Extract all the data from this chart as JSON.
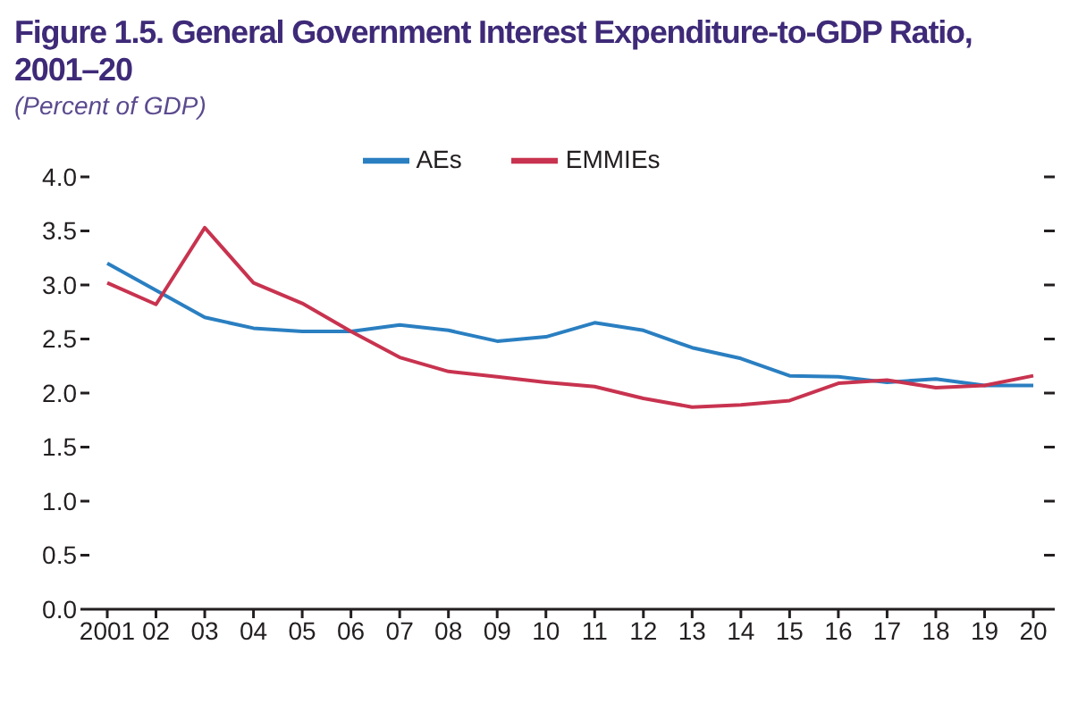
{
  "chart_data": {
    "type": "line",
    "title": "Figure 1.5. General Government Interest Expenditure-to-GDP Ratio, 2001–20",
    "subtitle": "(Percent of GDP)",
    "categories": [
      "2001",
      "02",
      "03",
      "04",
      "05",
      "06",
      "07",
      "08",
      "09",
      "10",
      "11",
      "12",
      "13",
      "14",
      "15",
      "16",
      "17",
      "18",
      "19",
      "20"
    ],
    "series": [
      {
        "name": "AEs",
        "color": "#2a7fc1",
        "values": [
          3.2,
          2.95,
          2.7,
          2.6,
          2.57,
          2.57,
          2.63,
          2.58,
          2.48,
          2.52,
          2.65,
          2.58,
          2.42,
          2.32,
          2.16,
          2.15,
          2.1,
          2.13,
          2.07,
          2.07
        ]
      },
      {
        "name": "EMMIEs",
        "color": "#c8334f",
        "values": [
          3.02,
          2.82,
          3.53,
          3.02,
          2.83,
          2.57,
          2.33,
          2.2,
          2.15,
          2.1,
          2.06,
          1.95,
          1.87,
          1.89,
          1.93,
          2.09,
          2.12,
          2.05,
          2.07,
          2.16
        ]
      }
    ],
    "ylim": [
      0,
      4
    ],
    "yticks": [
      {
        "value": 0,
        "label": "0.0"
      },
      {
        "value": 0.5,
        "label": "0.5"
      },
      {
        "value": 1,
        "label": "1.0"
      },
      {
        "value": 1.5,
        "label": "1.5"
      },
      {
        "value": 2,
        "label": "2.0"
      },
      {
        "value": 2.5,
        "label": "2.5"
      },
      {
        "value": 3,
        "label": "3.0"
      },
      {
        "value": 3.5,
        "label": "3.5"
      },
      {
        "value": 4,
        "label": "4.0"
      }
    ],
    "grid": false,
    "legend": "top",
    "marker": "none",
    "line_style": "solid"
  }
}
